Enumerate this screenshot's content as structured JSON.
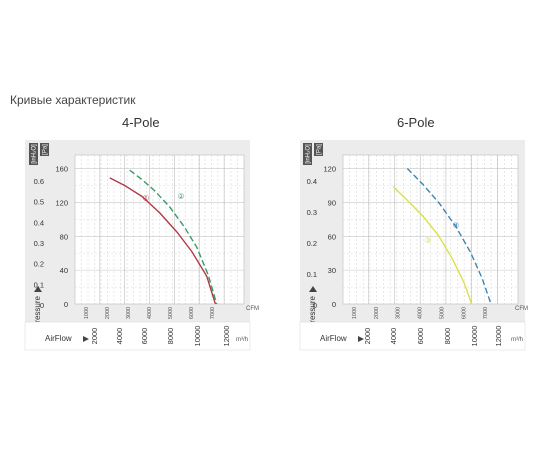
{
  "heading": "Кривые характеристик",
  "chart_data": [
    {
      "type": "line",
      "title": "4-Pole",
      "units": {
        "pa": "[Pa]",
        "inh2o": "[inH₂O]",
        "cfm": "CFM",
        "m3h": "m³/h"
      },
      "ylabel": "Pressure",
      "xlabel": "AirFlow",
      "pa_ticks": [
        "0",
        "40",
        "80",
        "120",
        "160"
      ],
      "pa_range": [
        0,
        176
      ],
      "inh2o_ticks": [
        "0",
        "0.1",
        "0.2",
        "0.3",
        "0.4",
        "0.5",
        "0.6"
      ],
      "cfm_ticks": [
        "1000",
        "2000",
        "3000",
        "4000",
        "5000",
        "6000",
        "7000"
      ],
      "m3h_ticks": [
        "2000",
        "4000",
        "6000",
        "8000",
        "10000",
        "12000"
      ],
      "m3h_range": [
        0,
        13600
      ],
      "series": [
        {
          "name": "①",
          "color": "#b03a48",
          "dashed": false,
          "x": [
            2800,
            4000,
            5400,
            6800,
            8200,
            9400,
            10600,
            11300
          ],
          "y": [
            149,
            140,
            127,
            108,
            85,
            62,
            33,
            0
          ]
        },
        {
          "name": "②",
          "color": "#3a9a6a",
          "dashed": true,
          "x": [
            4400,
            5400,
            6400,
            7600,
            8800,
            9800,
            10700,
            11400
          ],
          "y": [
            158,
            147,
            134,
            115,
            91,
            67,
            35,
            0
          ]
        }
      ]
    },
    {
      "type": "line",
      "title": "6-Pole",
      "units": {
        "pa": "[Pa]",
        "inh2o": "[inH₂O]",
        "cfm": "CFM",
        "m3h": "m³/h"
      },
      "ylabel": "Pressure",
      "xlabel": "AirFlow",
      "pa_ticks": [
        "0",
        "30",
        "60",
        "90",
        "120"
      ],
      "pa_range": [
        0,
        132
      ],
      "inh2o_ticks": [
        "0",
        "0.1",
        "0.2",
        "0.3",
        "0.4"
      ],
      "cfm_ticks": [
        "1000",
        "2000",
        "3000",
        "4000",
        "5000",
        "6000",
        "7000"
      ],
      "m3h_ticks": [
        "2000",
        "4000",
        "6000",
        "8000",
        "10000",
        "12000"
      ],
      "m3h_range": [
        0,
        13600
      ],
      "series": [
        {
          "name": "③",
          "color": "#dde04a",
          "dashed": false,
          "x": [
            3900,
            5000,
            6200,
            7400,
            8500,
            9400,
            10000
          ],
          "y": [
            104,
            92,
            78,
            61,
            40,
            19,
            0
          ]
        },
        {
          "name": "④",
          "color": "#3e86b4",
          "dashed": true,
          "x": [
            5000,
            6200,
            7500,
            8800,
            9900,
            10800,
            11500
          ],
          "y": [
            120,
            106,
            89,
            68,
            46,
            23,
            0
          ]
        }
      ]
    }
  ]
}
